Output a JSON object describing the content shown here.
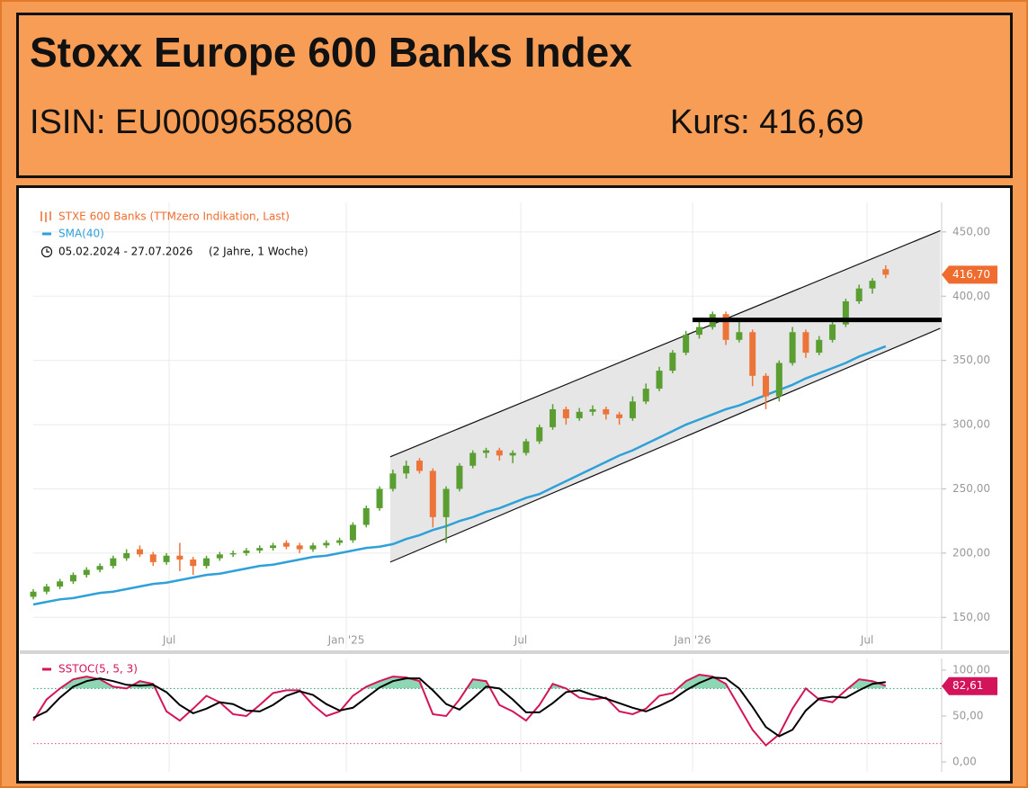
{
  "header": {
    "title": "Stoxx Europe 600 Banks Index",
    "isin": "ISIN: EU0009658806",
    "kurs": "Kurs: 416,69"
  },
  "chart_data": [
    {
      "type": "candlestick",
      "name": "STXE 600 Banks (TTMzero Indikation, Last)",
      "range_label": "05.02.2024 - 27.07.2026",
      "period_label": "(2 Jahre, 1 Woche)",
      "up_color": "#5a9e32",
      "down_color": "#ec7439",
      "ohlc": [
        [
          166,
          172,
          164,
          170
        ],
        [
          170,
          176,
          168,
          174
        ],
        [
          174,
          180,
          172,
          178
        ],
        [
          178,
          185,
          176,
          183
        ],
        [
          183,
          189,
          181,
          187
        ],
        [
          187,
          192,
          185,
          190
        ],
        [
          190,
          198,
          188,
          196
        ],
        [
          196,
          203,
          194,
          200
        ],
        [
          203,
          206,
          197,
          199
        ],
        [
          199,
          201,
          190,
          193
        ],
        [
          193,
          200,
          191,
          198
        ],
        [
          198,
          208,
          186,
          195
        ],
        [
          195,
          197,
          183,
          190
        ],
        [
          190,
          198,
          188,
          196
        ],
        [
          196,
          201,
          194,
          199
        ],
        [
          199,
          202,
          197,
          200
        ],
        [
          200,
          204,
          198,
          202
        ],
        [
          202,
          206,
          200,
          204
        ],
        [
          204,
          208,
          202,
          206
        ],
        [
          208,
          210,
          203,
          205
        ],
        [
          206,
          208,
          200,
          203
        ],
        [
          203,
          208,
          201,
          206
        ],
        [
          206,
          210,
          204,
          208
        ],
        [
          208,
          212,
          206,
          210
        ],
        [
          210,
          224,
          208,
          222
        ],
        [
          222,
          237,
          220,
          235
        ],
        [
          235,
          252,
          233,
          250
        ],
        [
          250,
          265,
          248,
          262
        ],
        [
          262,
          272,
          258,
          268
        ],
        [
          272,
          274,
          262,
          264
        ],
        [
          264,
          266,
          220,
          228
        ],
        [
          228,
          252,
          208,
          250
        ],
        [
          250,
          270,
          248,
          268
        ],
        [
          268,
          280,
          266,
          278
        ],
        [
          278,
          282,
          274,
          280
        ],
        [
          280,
          282,
          272,
          276
        ],
        [
          276,
          280,
          270,
          278
        ],
        [
          278,
          289,
          276,
          287
        ],
        [
          287,
          300,
          285,
          298
        ],
        [
          298,
          316,
          296,
          312
        ],
        [
          312,
          314,
          300,
          305
        ],
        [
          305,
          313,
          303,
          310
        ],
        [
          310,
          315,
          307,
          312
        ],
        [
          312,
          314,
          304,
          308
        ],
        [
          308,
          310,
          300,
          305
        ],
        [
          305,
          322,
          303,
          318
        ],
        [
          318,
          332,
          316,
          328
        ],
        [
          328,
          345,
          326,
          342
        ],
        [
          342,
          358,
          340,
          356
        ],
        [
          356,
          373,
          354,
          370
        ],
        [
          370,
          380,
          367,
          376
        ],
        [
          376,
          388,
          374,
          386
        ],
        [
          386,
          388,
          362,
          366
        ],
        [
          366,
          380,
          364,
          372
        ],
        [
          372,
          374,
          330,
          338
        ],
        [
          338,
          340,
          312,
          322
        ],
        [
          322,
          350,
          318,
          348
        ],
        [
          348,
          376,
          346,
          372
        ],
        [
          372,
          374,
          352,
          356
        ],
        [
          356,
          369,
          354,
          366
        ],
        [
          366,
          380,
          364,
          378
        ],
        [
          378,
          398,
          376,
          396
        ],
        [
          396,
          409,
          394,
          406
        ],
        [
          406,
          414,
          402,
          412
        ],
        [
          421,
          424,
          414,
          416.7
        ]
      ],
      "sma": {
        "name": "SMA(40)",
        "color": "#2fa0d8",
        "values": [
          160,
          162,
          164,
          165,
          167,
          169,
          170,
          172,
          174,
          176,
          177,
          179,
          181,
          183,
          184,
          186,
          188,
          190,
          191,
          193,
          195,
          197,
          198,
          200,
          202,
          204,
          205,
          207,
          211,
          214,
          218,
          221,
          225,
          228,
          232,
          235,
          239,
          243,
          246,
          251,
          256,
          261,
          266,
          271,
          276,
          280,
          285,
          290,
          295,
          300,
          304,
          308,
          312,
          315,
          319,
          323,
          327,
          331,
          336,
          340,
          344,
          348,
          353,
          357,
          361
        ]
      },
      "channel": {
        "upper": [
          [
            26.8,
            275
          ],
          [
            68.1,
            451
          ]
        ],
        "lower": [
          [
            26.8,
            193
          ],
          [
            68.1,
            375
          ]
        ],
        "color": "#e6e6e6"
      },
      "resistance": {
        "x": [
          49.5,
          68.2
        ],
        "y": 381.5
      },
      "last_value": {
        "value": 416.7,
        "label": "416,70"
      },
      "last_color": "#ef6c2e",
      "xlim": [
        0,
        68.2
      ],
      "xticks": [
        {
          "value": 10.2,
          "label": "Jul"
        },
        {
          "value": 23.5,
          "label": "Jan '25"
        },
        {
          "value": 36.6,
          "label": "Jul"
        },
        {
          "value": 49.5,
          "label": "Jan '26"
        },
        {
          "value": 62.6,
          "label": "Jul"
        }
      ],
      "ylim": [
        125,
        473
      ],
      "yticks": [
        {
          "value": 150,
          "label": "150,00"
        },
        {
          "value": 200,
          "label": "200,00"
        },
        {
          "value": 250,
          "label": "250,00"
        },
        {
          "value": 300,
          "label": "300,00"
        },
        {
          "value": 350,
          "label": "350,00"
        },
        {
          "value": 400,
          "label": "400,00"
        },
        {
          "value": 450,
          "label": "450,00"
        }
      ],
      "grid": true
    },
    {
      "type": "line",
      "name": "SSTOC(5, 5, 3)",
      "series": [
        {
          "color": "#d4145a",
          "values": [
            45,
            68,
            80,
            90,
            93,
            90,
            82,
            80,
            88,
            85,
            55,
            45,
            58,
            72,
            65,
            52,
            50,
            62,
            75,
            78,
            78,
            62,
            50,
            55,
            72,
            82,
            88,
            93,
            92,
            88,
            52,
            50,
            68,
            90,
            88,
            62,
            55,
            45,
            62,
            85,
            80,
            70,
            68,
            70,
            55,
            52,
            58,
            72,
            75,
            88,
            95,
            93,
            85,
            60,
            35,
            18,
            30,
            58,
            80,
            68,
            65,
            78,
            90,
            88,
            83
          ]
        },
        {
          "color": "#000000",
          "values": [
            48,
            55,
            70,
            82,
            88,
            91,
            88,
            84,
            83,
            84,
            76,
            62,
            53,
            58,
            65,
            63,
            56,
            55,
            62,
            72,
            77,
            73,
            63,
            56,
            59,
            70,
            81,
            88,
            91,
            91,
            78,
            63,
            57,
            69,
            82,
            80,
            68,
            54,
            54,
            64,
            76,
            78,
            73,
            69,
            64,
            59,
            55,
            61,
            68,
            78,
            86,
            92,
            91,
            80,
            60,
            38,
            28,
            35,
            56,
            69,
            71,
            70,
            78,
            85,
            87
          ]
        }
      ],
      "levels": [
        {
          "value": 80,
          "color": "#2e9e6e"
        },
        {
          "value": 20,
          "color": "#e0506e"
        }
      ],
      "fill_color": "#8fd6b4",
      "last_value": {
        "value": 82.61,
        "label": "82,61"
      },
      "xlim": [
        0,
        68.2
      ],
      "ylim": [
        -10.8,
        112.7
      ],
      "yticks": [
        {
          "value": 0,
          "label": "0,00"
        },
        {
          "value": 50,
          "label": "50,00"
        },
        {
          "value": 100,
          "label": "100,00"
        }
      ]
    }
  ]
}
